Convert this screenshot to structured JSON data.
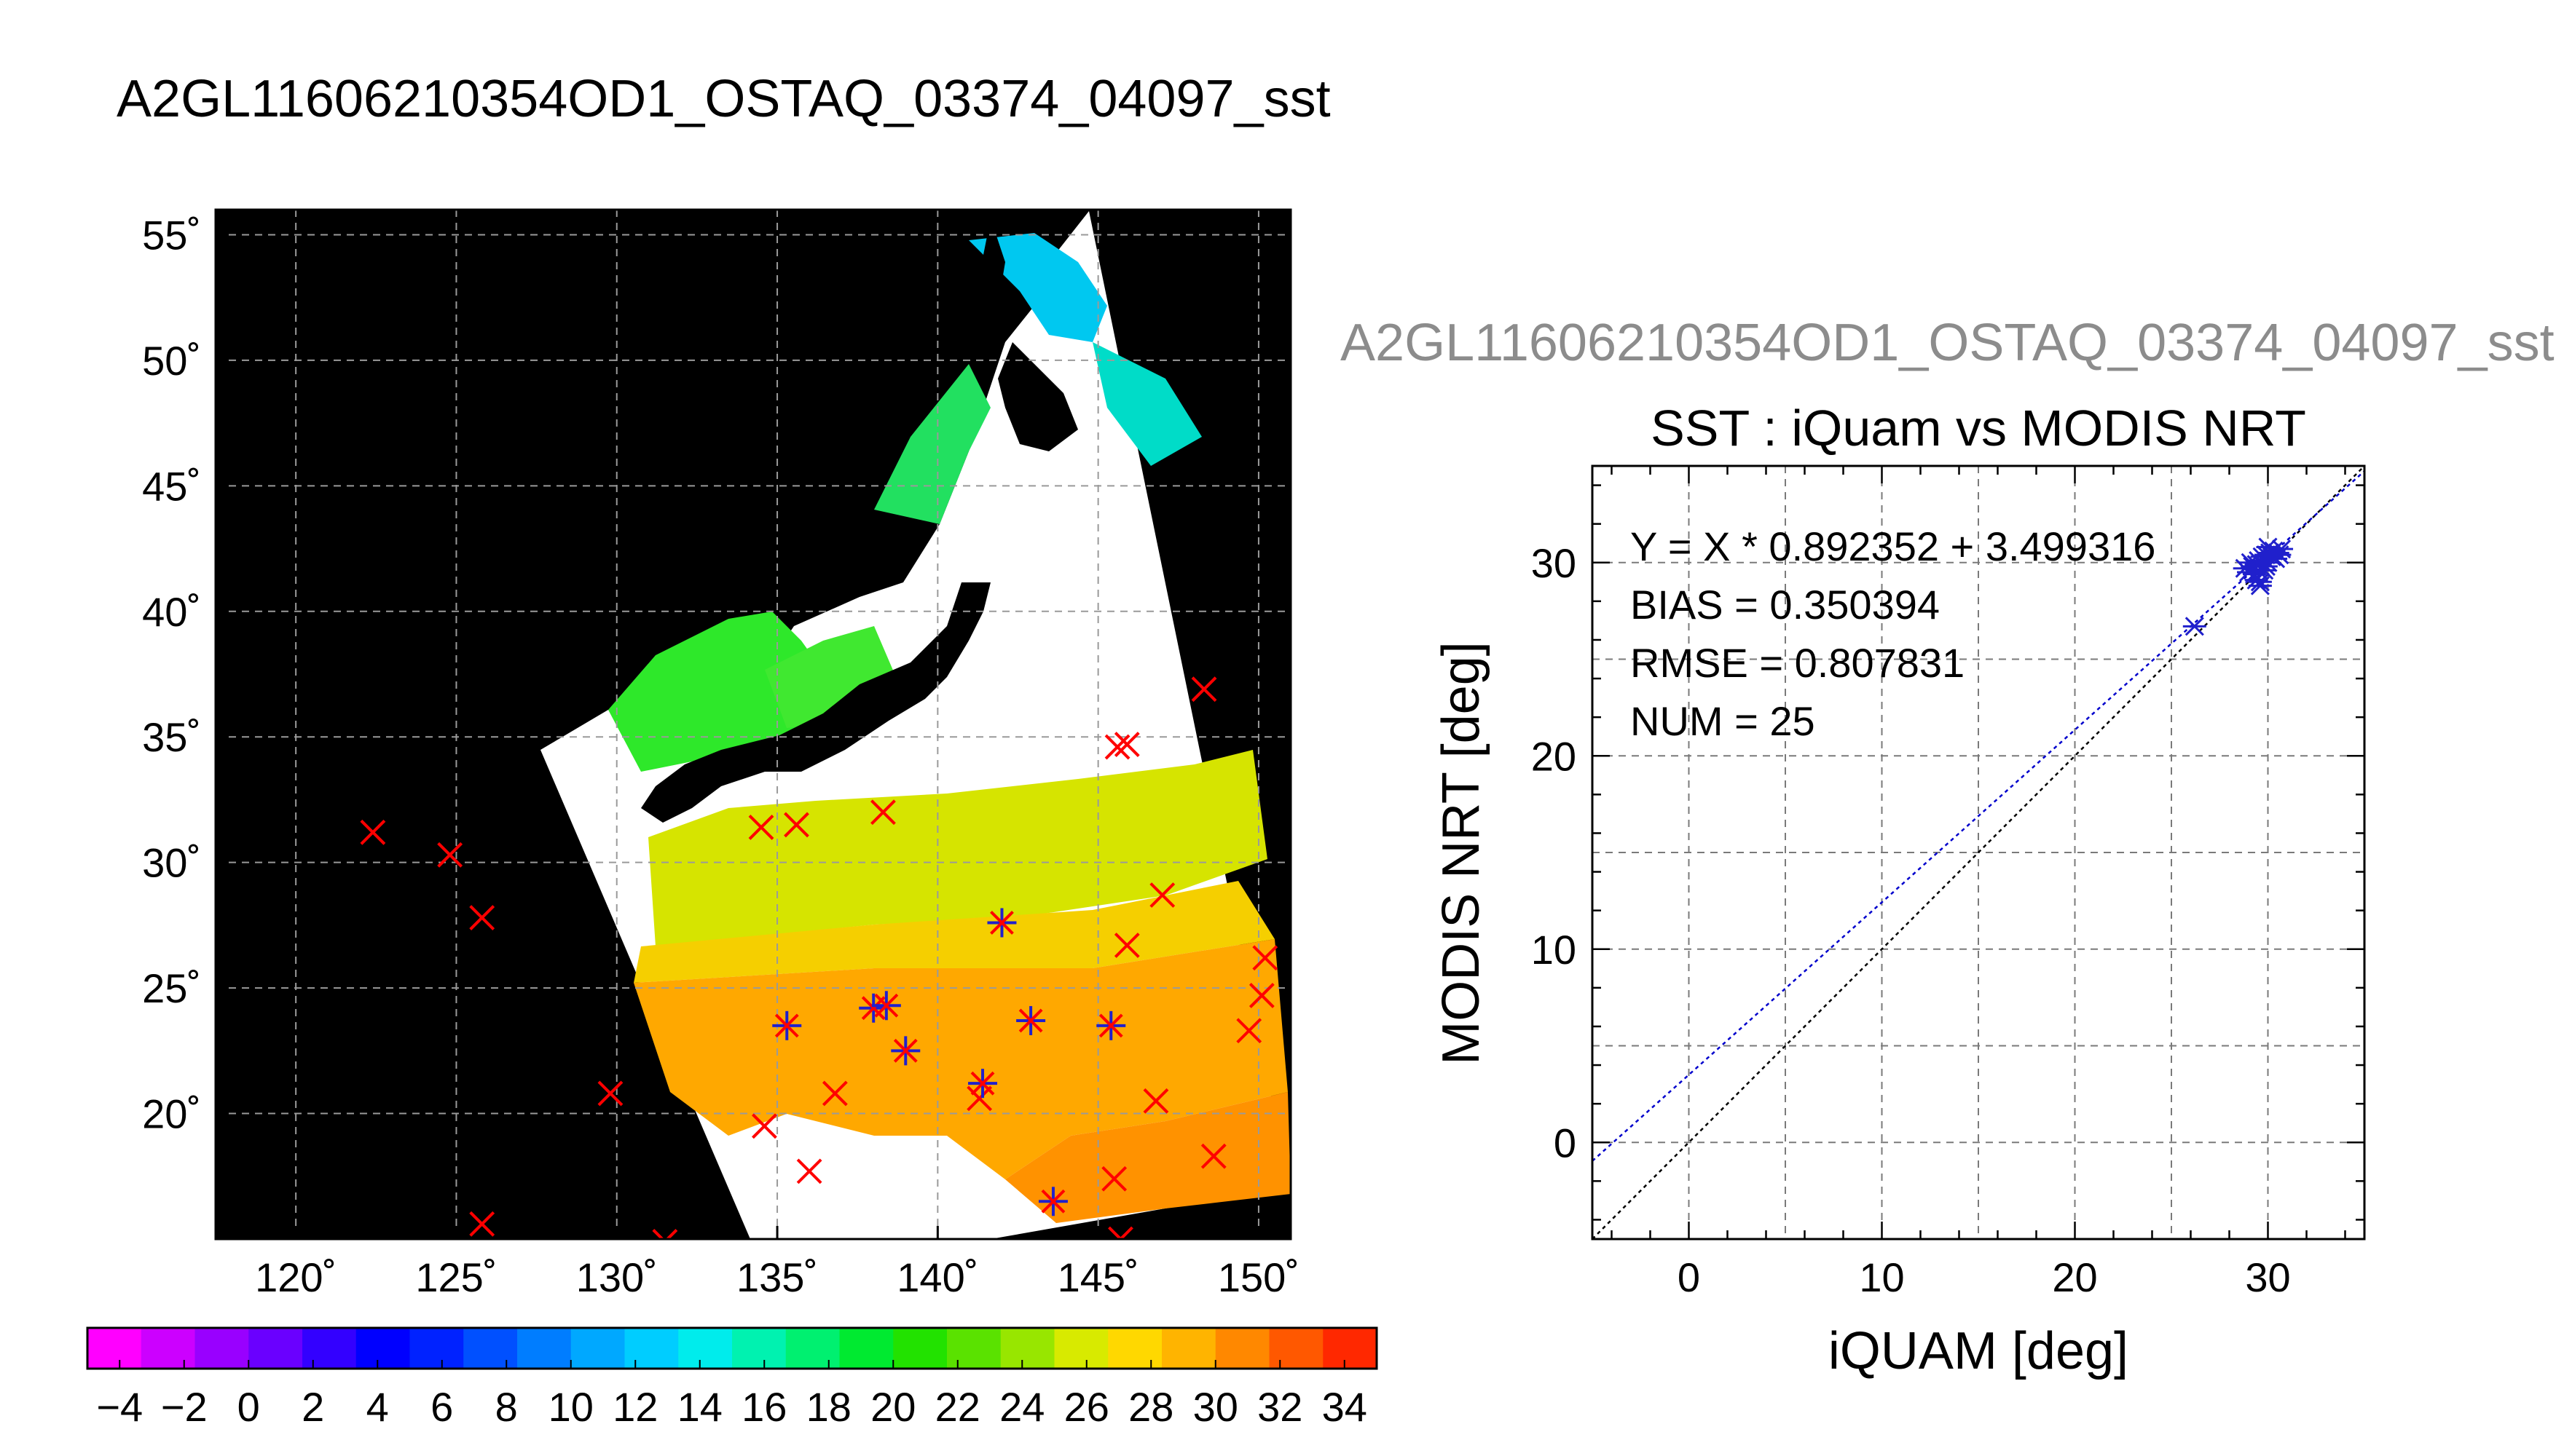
{
  "page_title": "A2GL11606210354OD1_OSTAQ_03374_04097_sst",
  "right_panel_title": "A2GL11606210354OD1_OSTAQ_03374_04097_sst",
  "colors": {
    "match_marker": "#ff0000",
    "matched_star": "#2020cc",
    "fit_line": "#0000cc",
    "identity_line": "#000000",
    "land": "#000000",
    "grid": "#9a9a9a"
  },
  "chart_data": [
    {
      "type": "map",
      "name": "sst-map",
      "lon_range": [
        117.5,
        151
      ],
      "lat_range": [
        15,
        56
      ],
      "lon_ticks": [
        120,
        125,
        130,
        135,
        140,
        145,
        150
      ],
      "lat_ticks": [
        20,
        25,
        30,
        35,
        40,
        45,
        50,
        55
      ],
      "lon_tick_labels": [
        "120˚",
        "125˚",
        "130˚",
        "135˚",
        "140˚",
        "145˚",
        "150˚"
      ],
      "lat_tick_labels": [
        "20˚",
        "25˚",
        "30˚",
        "35˚",
        "40˚",
        "45˚",
        "50˚",
        "55˚"
      ],
      "grid": true,
      "iquam_points_x": [
        {
          "lon": 122.4,
          "lat": 31.2
        },
        {
          "lon": 124.8,
          "lat": 30.3
        },
        {
          "lon": 125.8,
          "lat": 27.8
        },
        {
          "lon": 125.8,
          "lat": 15.6
        },
        {
          "lon": 129.8,
          "lat": 20.8
        },
        {
          "lon": 131.5,
          "lat": 14.9
        },
        {
          "lon": 134.5,
          "lat": 31.4
        },
        {
          "lon": 135.6,
          "lat": 31.5
        },
        {
          "lon": 138.3,
          "lat": 32.0
        },
        {
          "lon": 134.6,
          "lat": 19.5
        },
        {
          "lon": 136.0,
          "lat": 17.7
        },
        {
          "lon": 136.8,
          "lat": 20.8
        },
        {
          "lon": 141.3,
          "lat": 20.6
        },
        {
          "lon": 145.5,
          "lat": 17.4
        },
        {
          "lon": 145.7,
          "lat": 15.0
        },
        {
          "lon": 146.8,
          "lat": 20.5
        },
        {
          "lon": 148.6,
          "lat": 18.3
        },
        {
          "lon": 145.6,
          "lat": 34.6
        },
        {
          "lon": 145.9,
          "lat": 34.7
        },
        {
          "lon": 148.3,
          "lat": 36.9
        },
        {
          "lon": 147.0,
          "lat": 28.7
        },
        {
          "lon": 145.9,
          "lat": 26.7
        },
        {
          "lon": 150.2,
          "lat": 26.2
        },
        {
          "lon": 150.1,
          "lat": 24.7
        },
        {
          "lon": 149.7,
          "lat": 23.3
        }
      ],
      "matched_points": [
        {
          "lon": 135.3,
          "lat": 23.5
        },
        {
          "lon": 138.0,
          "lat": 24.2
        },
        {
          "lon": 138.4,
          "lat": 24.3
        },
        {
          "lon": 139.0,
          "lat": 22.5
        },
        {
          "lon": 141.4,
          "lat": 21.2
        },
        {
          "lon": 142.0,
          "lat": 27.6
        },
        {
          "lon": 142.9,
          "lat": 23.7
        },
        {
          "lon": 145.4,
          "lat": 23.5
        },
        {
          "lon": 143.6,
          "lat": 16.5
        }
      ]
    },
    {
      "type": "colorbar",
      "name": "sst-colorbar",
      "range": [
        -5,
        35
      ],
      "tick_values": [
        -4,
        -2,
        0,
        2,
        4,
        6,
        8,
        10,
        12,
        14,
        16,
        18,
        20,
        22,
        24,
        26,
        28,
        30,
        32,
        34
      ],
      "tick_labels": [
        "−4",
        "−2",
        "0",
        "2",
        "4",
        "6",
        "8",
        "10",
        "12",
        "14",
        "16",
        "18",
        "20",
        "22",
        "24",
        "26",
        "28",
        "30",
        "32",
        "34"
      ],
      "colors": [
        "#ff00ff",
        "#cc00ff",
        "#9900ff",
        "#6a00ff",
        "#3300ff",
        "#0000ff",
        "#0022ff",
        "#0050ff",
        "#007dff",
        "#00a8ff",
        "#00cdff",
        "#00ecec",
        "#00f2b0",
        "#00f070",
        "#00ea30",
        "#22e200",
        "#5ae200",
        "#98e600",
        "#d8ea00",
        "#ffd800",
        "#ffb400",
        "#ff8800",
        "#ff5800",
        "#ff2800"
      ]
    },
    {
      "type": "scatter",
      "name": "sst-scatter",
      "title": "SST : iQuam vs MODIS NRT",
      "xlabel": "iQUAM [deg]",
      "ylabel": "MODIS NRT [deg]",
      "xlim": [
        -5,
        35
      ],
      "ylim": [
        -5,
        35
      ],
      "x_ticks": [
        0,
        10,
        20,
        30
      ],
      "y_ticks": [
        0,
        10,
        20,
        30
      ],
      "grid": true,
      "annotations": [
        "Y = X * 0.892352 + 3.499316",
        "BIAS = 0.350394",
        "RMSE = 0.807831",
        "NUM = 25"
      ],
      "fit": {
        "slope": 0.892352,
        "intercept": 3.499316
      },
      "points": [
        {
          "x": 26.2,
          "y": 26.7
        },
        {
          "x": 28.8,
          "y": 29.7
        },
        {
          "x": 29.0,
          "y": 29.5
        },
        {
          "x": 29.2,
          "y": 29.8
        },
        {
          "x": 29.3,
          "y": 29.4
        },
        {
          "x": 29.4,
          "y": 29.9
        },
        {
          "x": 29.5,
          "y": 30.1
        },
        {
          "x": 29.6,
          "y": 29.0
        },
        {
          "x": 29.7,
          "y": 30.3
        },
        {
          "x": 29.8,
          "y": 29.6
        },
        {
          "x": 29.9,
          "y": 30.4
        },
        {
          "x": 30.0,
          "y": 30.0
        },
        {
          "x": 30.1,
          "y": 30.5
        },
        {
          "x": 30.2,
          "y": 30.3
        },
        {
          "x": 30.3,
          "y": 30.6
        },
        {
          "x": 30.4,
          "y": 30.2
        },
        {
          "x": 30.5,
          "y": 30.5
        },
        {
          "x": 29.6,
          "y": 28.8
        },
        {
          "x": 29.4,
          "y": 29.1
        },
        {
          "x": 29.9,
          "y": 29.8
        },
        {
          "x": 30.6,
          "y": 30.4
        },
        {
          "x": 30.7,
          "y": 30.7
        },
        {
          "x": 29.1,
          "y": 30.0
        },
        {
          "x": 30.0,
          "y": 30.8
        },
        {
          "x": 29.5,
          "y": 29.6
        }
      ]
    }
  ]
}
